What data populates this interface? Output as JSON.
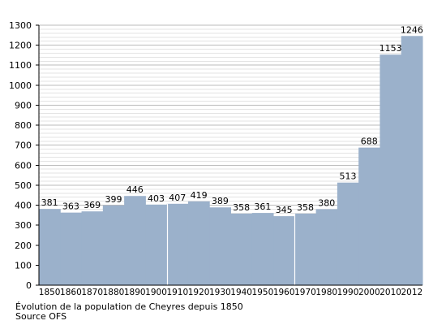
{
  "chart_data": {
    "type": "bar",
    "categories": [
      "1850",
      "1860",
      "1870",
      "1880",
      "1890",
      "1900",
      "1910",
      "1920",
      "1930",
      "1940",
      "1950",
      "1960",
      "1970",
      "1980",
      "1990",
      "2000",
      "2010",
      "2012"
    ],
    "values": [
      381,
      363,
      369,
      399,
      446,
      403,
      407,
      419,
      389,
      358,
      361,
      345,
      358,
      380,
      513,
      688,
      1153,
      1246
    ],
    "title": "",
    "xlabel": "",
    "ylabel": "",
    "ylim": [
      0,
      1300
    ],
    "yticks": [
      0,
      100,
      200,
      300,
      400,
      500,
      600,
      700,
      800,
      900,
      1000,
      1100,
      1200,
      1300
    ],
    "grid": true,
    "legend": "none",
    "bar_color": "#9bb1cb",
    "grid_color": "#cccccc",
    "gap_after": [
      "1900",
      "1960"
    ]
  },
  "captions": {
    "line1": "Évolution de la population de Cheyres depuis 1850",
    "line2": "Source OFS"
  }
}
